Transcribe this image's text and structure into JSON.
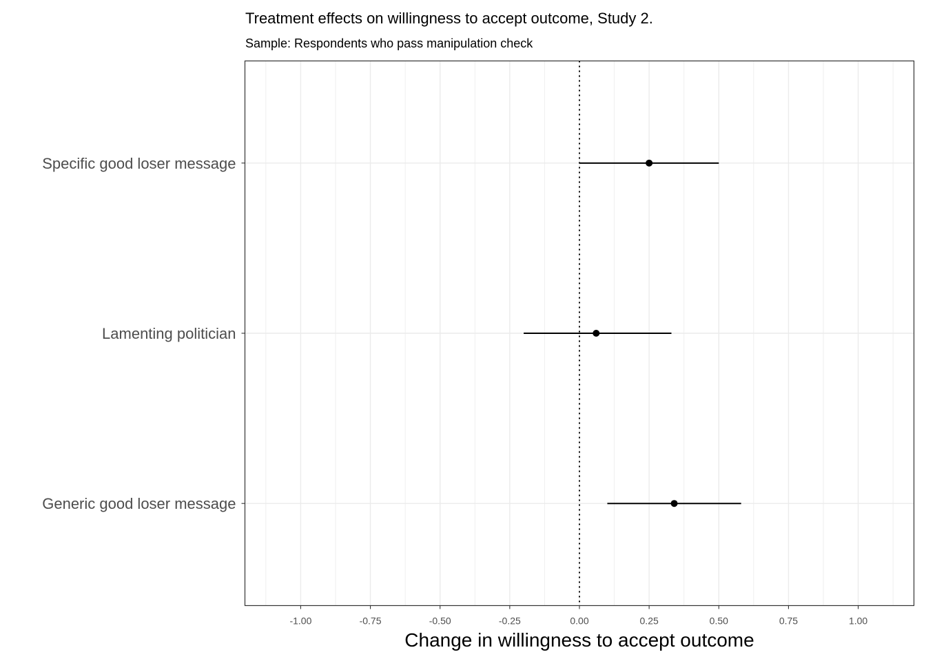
{
  "chart_data": {
    "type": "scatter",
    "subtype": "coefficient-plot",
    "title": "Treatment effects on willingness to accept outcome, Study 2.",
    "subtitle": "Sample: Respondents who pass manipulation check",
    "xlabel": "Change in willingness to accept outcome",
    "ylabel": "",
    "xlim": [
      -1.2,
      1.2
    ],
    "x_ticks": [
      -1.0,
      -0.75,
      -0.5,
      -0.25,
      0.0,
      0.25,
      0.5,
      0.75,
      1.0
    ],
    "x_tick_labels": [
      "-1.00",
      "-0.75",
      "-0.50",
      "-0.25",
      "0.00",
      "0.25",
      "0.50",
      "0.75",
      "1.00"
    ],
    "categories": [
      "Specific good loser message",
      "Lamenting politician",
      "Generic good loser message"
    ],
    "points": [
      {
        "category": "Specific good loser message",
        "estimate": 0.25,
        "ci_low": 0.0,
        "ci_high": 0.5
      },
      {
        "category": "Lamenting politician",
        "estimate": 0.06,
        "ci_low": -0.2,
        "ci_high": 0.33
      },
      {
        "category": "Generic good loser message",
        "estimate": 0.34,
        "ci_low": 0.1,
        "ci_high": 0.58
      }
    ],
    "reference_line": {
      "x": 0,
      "style": "dotted"
    },
    "grid": true,
    "legend": "none",
    "colors": {
      "point": "#000000",
      "errorbar": "#000000",
      "grid": "#ebebeb",
      "panel_border": "#333333",
      "axis_text": "#4d4d4d"
    }
  }
}
